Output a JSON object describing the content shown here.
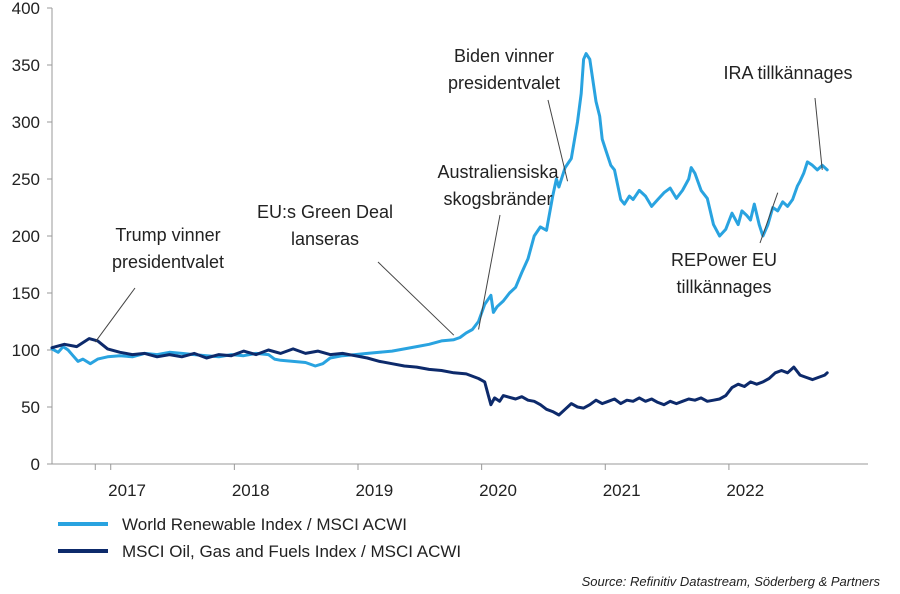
{
  "chart_data": {
    "type": "line",
    "title": "",
    "xlabel": "",
    "ylabel": "",
    "ylim": [
      0,
      400
    ],
    "yticks": [
      0,
      50,
      100,
      150,
      200,
      250,
      300,
      350,
      400
    ],
    "x_range": [
      2016.25,
      2022.85
    ],
    "x_ticks": [
      "2017",
      "2018",
      "2019",
      "2020",
      "2021",
      "2022"
    ],
    "grid": false,
    "legend_position": "bottom",
    "series": [
      {
        "name": "World Renewable Index / MSCI ACWI",
        "color": "#29a3e0",
        "points": [
          [
            2016.25,
            101
          ],
          [
            2016.3,
            98
          ],
          [
            2016.34,
            103
          ],
          [
            2016.38,
            100
          ],
          [
            2016.42,
            95
          ],
          [
            2016.46,
            90
          ],
          [
            2016.5,
            92
          ],
          [
            2016.56,
            88
          ],
          [
            2016.62,
            92
          ],
          [
            2016.7,
            94
          ],
          [
            2016.8,
            95
          ],
          [
            2016.9,
            94
          ],
          [
            2017.0,
            97
          ],
          [
            2017.1,
            96
          ],
          [
            2017.2,
            98
          ],
          [
            2017.3,
            97
          ],
          [
            2017.4,
            96
          ],
          [
            2017.5,
            95
          ],
          [
            2017.6,
            94
          ],
          [
            2017.7,
            96
          ],
          [
            2017.8,
            95
          ],
          [
            2017.9,
            97
          ],
          [
            2018.0,
            96
          ],
          [
            2018.05,
            92
          ],
          [
            2018.1,
            91
          ],
          [
            2018.2,
            90
          ],
          [
            2018.3,
            89
          ],
          [
            2018.38,
            86
          ],
          [
            2018.44,
            88
          ],
          [
            2018.5,
            93
          ],
          [
            2018.6,
            95
          ],
          [
            2018.7,
            96
          ],
          [
            2018.8,
            97
          ],
          [
            2018.9,
            98
          ],
          [
            2019.0,
            99
          ],
          [
            2019.1,
            101
          ],
          [
            2019.2,
            103
          ],
          [
            2019.3,
            105
          ],
          [
            2019.4,
            108
          ],
          [
            2019.5,
            109
          ],
          [
            2019.55,
            111
          ],
          [
            2019.6,
            115
          ],
          [
            2019.65,
            118
          ],
          [
            2019.7,
            125
          ],
          [
            2019.75,
            140
          ],
          [
            2019.8,
            148
          ],
          [
            2019.82,
            133
          ],
          [
            2019.85,
            138
          ],
          [
            2019.9,
            143
          ],
          [
            2019.95,
            150
          ],
          [
            2020.0,
            155
          ],
          [
            2020.05,
            168
          ],
          [
            2020.1,
            180
          ],
          [
            2020.15,
            200
          ],
          [
            2020.2,
            208
          ],
          [
            2020.25,
            205
          ],
          [
            2020.3,
            235
          ],
          [
            2020.33,
            250
          ],
          [
            2020.35,
            243
          ],
          [
            2020.4,
            260
          ],
          [
            2020.45,
            268
          ],
          [
            2020.5,
            300
          ],
          [
            2020.53,
            325
          ],
          [
            2020.55,
            355
          ],
          [
            2020.57,
            360
          ],
          [
            2020.6,
            355
          ],
          [
            2020.62,
            340
          ],
          [
            2020.65,
            318
          ],
          [
            2020.68,
            305
          ],
          [
            2020.7,
            285
          ],
          [
            2020.73,
            275
          ],
          [
            2020.77,
            262
          ],
          [
            2020.8,
            258
          ],
          [
            2020.85,
            232
          ],
          [
            2020.88,
            228
          ],
          [
            2020.92,
            235
          ],
          [
            2020.95,
            232
          ],
          [
            2021.0,
            240
          ],
          [
            2021.05,
            235
          ],
          [
            2021.1,
            226
          ],
          [
            2021.15,
            232
          ],
          [
            2021.2,
            238
          ],
          [
            2021.25,
            242
          ],
          [
            2021.3,
            233
          ],
          [
            2021.35,
            240
          ],
          [
            2021.4,
            250
          ],
          [
            2021.42,
            260
          ],
          [
            2021.45,
            255
          ],
          [
            2021.5,
            240
          ],
          [
            2021.55,
            233
          ],
          [
            2021.6,
            210
          ],
          [
            2021.65,
            200
          ],
          [
            2021.7,
            206
          ],
          [
            2021.75,
            220
          ],
          [
            2021.8,
            210
          ],
          [
            2021.83,
            222
          ],
          [
            2021.87,
            218
          ],
          [
            2021.9,
            214
          ],
          [
            2021.93,
            228
          ],
          [
            2021.97,
            210
          ],
          [
            2022.0,
            200
          ],
          [
            2022.04,
            210
          ],
          [
            2022.08,
            225
          ],
          [
            2022.12,
            222
          ],
          [
            2022.16,
            230
          ],
          [
            2022.2,
            226
          ],
          [
            2022.24,
            232
          ],
          [
            2022.28,
            244
          ],
          [
            2022.3,
            248
          ],
          [
            2022.33,
            255
          ],
          [
            2022.36,
            265
          ],
          [
            2022.4,
            262
          ],
          [
            2022.44,
            258
          ],
          [
            2022.48,
            262
          ],
          [
            2022.52,
            258
          ]
        ]
      },
      {
        "name": "MSCI Oil, Gas and Fuels Index / MSCI ACWI",
        "color": "#0d2a6b",
        "points": [
          [
            2016.25,
            102
          ],
          [
            2016.35,
            105
          ],
          [
            2016.45,
            103
          ],
          [
            2016.55,
            110
          ],
          [
            2016.62,
            108
          ],
          [
            2016.7,
            101
          ],
          [
            2016.8,
            98
          ],
          [
            2016.9,
            96
          ],
          [
            2017.0,
            97
          ],
          [
            2017.1,
            94
          ],
          [
            2017.2,
            96
          ],
          [
            2017.3,
            94
          ],
          [
            2017.4,
            97
          ],
          [
            2017.5,
            93
          ],
          [
            2017.6,
            96
          ],
          [
            2017.7,
            95
          ],
          [
            2017.8,
            99
          ],
          [
            2017.9,
            96
          ],
          [
            2018.0,
            100
          ],
          [
            2018.1,
            97
          ],
          [
            2018.2,
            101
          ],
          [
            2018.3,
            97
          ],
          [
            2018.4,
            99
          ],
          [
            2018.5,
            96
          ],
          [
            2018.6,
            97
          ],
          [
            2018.7,
            95
          ],
          [
            2018.8,
            93
          ],
          [
            2018.9,
            90
          ],
          [
            2019.0,
            88
          ],
          [
            2019.1,
            86
          ],
          [
            2019.2,
            85
          ],
          [
            2019.3,
            83
          ],
          [
            2019.4,
            82
          ],
          [
            2019.5,
            80
          ],
          [
            2019.6,
            79
          ],
          [
            2019.7,
            75
          ],
          [
            2019.75,
            72
          ],
          [
            2019.78,
            60
          ],
          [
            2019.8,
            52
          ],
          [
            2019.83,
            58
          ],
          [
            2019.87,
            55
          ],
          [
            2019.9,
            60
          ],
          [
            2020.0,
            57
          ],
          [
            2020.05,
            59
          ],
          [
            2020.1,
            56
          ],
          [
            2020.15,
            55
          ],
          [
            2020.2,
            52
          ],
          [
            2020.25,
            48
          ],
          [
            2020.3,
            46
          ],
          [
            2020.35,
            43
          ],
          [
            2020.4,
            48
          ],
          [
            2020.45,
            53
          ],
          [
            2020.5,
            50
          ],
          [
            2020.55,
            49
          ],
          [
            2020.6,
            52
          ],
          [
            2020.65,
            56
          ],
          [
            2020.7,
            53
          ],
          [
            2020.75,
            55
          ],
          [
            2020.8,
            57
          ],
          [
            2020.85,
            53
          ],
          [
            2020.9,
            56
          ],
          [
            2020.95,
            55
          ],
          [
            2021.0,
            58
          ],
          [
            2021.05,
            55
          ],
          [
            2021.1,
            57
          ],
          [
            2021.15,
            54
          ],
          [
            2021.2,
            52
          ],
          [
            2021.25,
            55
          ],
          [
            2021.3,
            53
          ],
          [
            2021.35,
            55
          ],
          [
            2021.4,
            57
          ],
          [
            2021.45,
            56
          ],
          [
            2021.5,
            58
          ],
          [
            2021.55,
            55
          ],
          [
            2021.6,
            56
          ],
          [
            2021.65,
            57
          ],
          [
            2021.7,
            60
          ],
          [
            2021.75,
            67
          ],
          [
            2021.8,
            70
          ],
          [
            2021.85,
            68
          ],
          [
            2021.9,
            72
          ],
          [
            2021.95,
            70
          ],
          [
            2022.0,
            72
          ],
          [
            2022.05,
            75
          ],
          [
            2022.1,
            80
          ],
          [
            2022.15,
            82
          ],
          [
            2022.2,
            80
          ],
          [
            2022.25,
            85
          ],
          [
            2022.3,
            78
          ],
          [
            2022.35,
            76
          ],
          [
            2022.4,
            74
          ],
          [
            2022.45,
            76
          ],
          [
            2022.5,
            78
          ],
          [
            2022.52,
            80
          ]
        ]
      }
    ],
    "annotations": [
      {
        "lines": [
          "Trump vinner",
          "presidentvalet"
        ],
        "target": [
          2016.6,
          107
        ]
      },
      {
        "lines": [
          "EU:s Green Deal",
          "lanseras"
        ],
        "target": [
          2019.5,
          113
        ]
      },
      {
        "lines": [
          "Australiensiska",
          "skogsbränder"
        ],
        "target": [
          2019.7,
          118
        ]
      },
      {
        "lines": [
          "Biden vinner",
          "presidentvalet"
        ],
        "target": [
          2020.42,
          248
        ]
      },
      {
        "lines": [
          "IRA tillkännages"
        ],
        "target": [
          2022.48,
          258
        ]
      },
      {
        "lines": [
          "REPower EU",
          "tillkännages"
        ],
        "target": [
          2022.12,
          238
        ]
      }
    ],
    "source": "Source: Refinitiv Datastream, Söderberg & Partners"
  }
}
